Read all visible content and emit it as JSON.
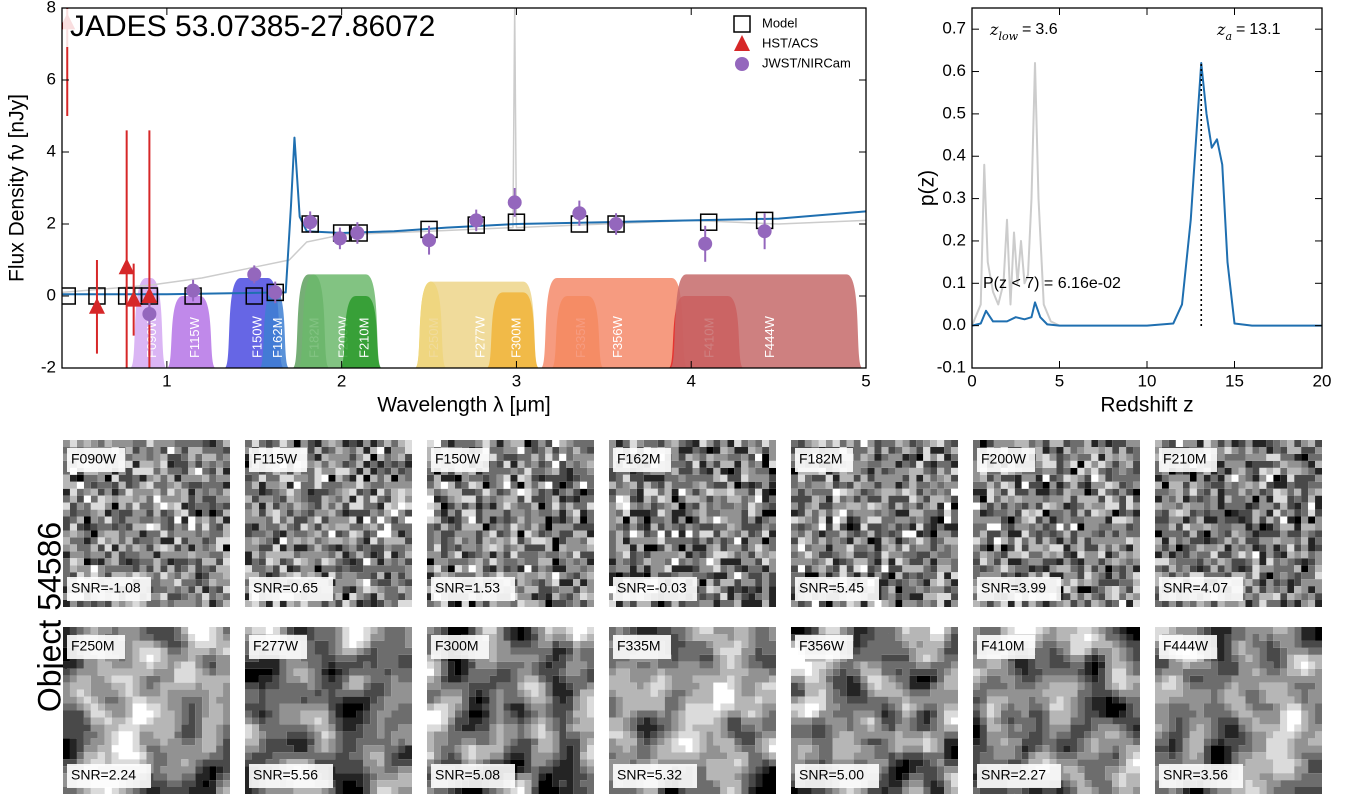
{
  "chart_data": [
    {
      "type": "scatter",
      "title": "JADES 53.07385-27.86072",
      "xlabel": "Wavelength λ [μm]",
      "ylabel": "Flux Density fν [nJy]",
      "xlim": [
        0.4,
        5
      ],
      "xticks": [
        1,
        2,
        3,
        4,
        5
      ],
      "ylim": [
        -2,
        8
      ],
      "yticks": [
        -2,
        0,
        2,
        4,
        6,
        8
      ],
      "filters": [
        {
          "name": "F090W",
          "color": "#d3a8f2",
          "range": [
            0.79,
            1.0
          ],
          "top": 0.5
        },
        {
          "name": "F115W",
          "color": "#b574e6",
          "range": [
            1.0,
            1.28
          ],
          "top": 0.0
        },
        {
          "name": "F150W",
          "color": "#4b4be0",
          "range": [
            1.33,
            1.67
          ],
          "top": 0.5
        },
        {
          "name": "F162M",
          "color": "#3d7fd2",
          "range": [
            1.53,
            1.7
          ],
          "top": 0.2
        },
        {
          "name": "F182M",
          "color": "#5ea05e",
          "range": [
            1.72,
            1.93
          ],
          "top": 0.6
        },
        {
          "name": "F200W",
          "color": "#6cb86c",
          "range": [
            1.75,
            2.23
          ],
          "top": 0.6
        },
        {
          "name": "F210M",
          "color": "#2c9a2c",
          "range": [
            1.99,
            2.23
          ],
          "top": 0.0
        },
        {
          "name": "F250M",
          "color": "#f2d22e",
          "range": [
            2.42,
            2.6
          ],
          "top": 0.4
        },
        {
          "name": "F277W",
          "color": "#edd58a",
          "range": [
            2.42,
            3.13
          ],
          "top": 0.4
        },
        {
          "name": "F300M",
          "color": "#f1b43a",
          "range": [
            2.83,
            3.13
          ],
          "top": 0.1
        },
        {
          "name": "F335M",
          "color": "#f5862a",
          "range": [
            3.2,
            3.5
          ],
          "top": 0.0
        },
        {
          "name": "F356W",
          "color": "#f48a6a",
          "range": [
            3.14,
            3.98
          ],
          "top": 0.5
        },
        {
          "name": "F410M",
          "color": "#e32222",
          "range": [
            3.87,
            4.3
          ],
          "top": 0.0
        },
        {
          "name": "F444W",
          "color": "#c66a6a",
          "range": [
            3.88,
            4.98
          ],
          "top": 0.6
        }
      ],
      "series": [
        {
          "kind": "line",
          "color": "#cccccc",
          "x": [
            0.4,
            0.9,
            1.2,
            1.5,
            1.7,
            1.8,
            2.0,
            2.5,
            2.98,
            2.99,
            3.0,
            3.5,
            4.0,
            4.5,
            5.0
          ],
          "values": [
            0.1,
            0.3,
            0.5,
            0.8,
            1.0,
            1.5,
            1.7,
            1.8,
            1.9,
            8,
            1.9,
            2.0,
            2.1,
            2.0,
            2.1
          ]
        },
        {
          "kind": "line",
          "color": "#1f6fb0",
          "x": [
            0.4,
            1.0,
            1.68,
            1.71,
            1.73,
            1.76,
            1.8,
            2.0,
            2.3,
            2.6,
            3.0,
            3.5,
            4.0,
            4.5,
            5.0
          ],
          "values": [
            0.05,
            0.05,
            0.1,
            2.5,
            4.4,
            2.2,
            1.8,
            1.75,
            1.8,
            1.9,
            2.0,
            2.05,
            2.1,
            2.15,
            2.35
          ]
        },
        {
          "name": "Model",
          "kind": "square",
          "color": "#000000",
          "x": [
            0.43,
            0.6,
            0.77,
            0.81,
            0.9,
            1.15,
            1.5,
            1.62,
            1.82,
            2.0,
            2.1,
            2.5,
            2.77,
            3.0,
            3.36,
            3.57,
            4.1,
            4.42
          ],
          "values": [
            0,
            0,
            0,
            0,
            0,
            0,
            0,
            0.1,
            2.0,
            1.75,
            1.75,
            1.85,
            1.97,
            2.05,
            2.0,
            2.0,
            2.05,
            2.1
          ]
        },
        {
          "name": "HST/ACS",
          "kind": "triangle",
          "color": "#d62728",
          "x": [
            0.43,
            0.6,
            0.77,
            0.81,
            0.9
          ],
          "values": [
            7.6,
            -0.3,
            0.8,
            -0.1,
            0.0
          ],
          "errors": [
            2.6,
            1.3,
            3.8,
            1.0,
            4.6
          ]
        },
        {
          "name": "JWST/NIRCam",
          "kind": "circle",
          "color": "#9467bd",
          "x": [
            0.9,
            1.15,
            1.5,
            1.62,
            1.82,
            1.99,
            2.09,
            2.5,
            2.77,
            2.99,
            3.36,
            3.57,
            4.08,
            4.42
          ],
          "values": [
            -0.5,
            0.15,
            0.6,
            0.1,
            2.05,
            1.6,
            1.75,
            1.55,
            2.1,
            2.6,
            2.3,
            2.0,
            1.45,
            1.8
          ],
          "errors": [
            0.3,
            0.3,
            0.25,
            0.3,
            0.3,
            0.3,
            0.3,
            0.4,
            0.3,
            0.4,
            0.35,
            0.3,
            0.5,
            0.5
          ]
        }
      ]
    },
    {
      "type": "line",
      "xlabel": "Redshift z",
      "ylabel": "p(z)",
      "xlim": [
        0,
        20
      ],
      "xticks": [
        0,
        5,
        10,
        15,
        20
      ],
      "ylim": [
        -0.1,
        0.75
      ],
      "yticks": [
        -0.1,
        {
          "value": 0,
          "label": "0.0"
        },
        0.1,
        0.2,
        0.3,
        0.4,
        0.5,
        0.6,
        0.7
      ],
      "annotations": [
        {
          "symbol": "z",
          "subscript": "low",
          "relation": "=",
          "value": 3.6
        },
        {
          "symbol": "z",
          "subscript": "a",
          "relation": "=",
          "value": 13.1
        }
      ],
      "probability_label": "P(z < 7) = 6.16e-02",
      "series": [
        {
          "color": "#cccccc",
          "x": [
            0,
            0.5,
            0.7,
            0.9,
            1.2,
            1.5,
            1.8,
            2.0,
            2.2,
            2.4,
            2.6,
            2.8,
            3.0,
            3.2,
            3.4,
            3.6,
            3.8,
            4.1,
            4.5,
            5
          ],
          "values": [
            0,
            0.05,
            0.38,
            0.15,
            0.08,
            0.05,
            0.1,
            0.25,
            0.05,
            0.22,
            0.1,
            0.2,
            0.1,
            0.12,
            0.3,
            0.62,
            0.3,
            0.05,
            0.01,
            0
          ]
        },
        {
          "color": "#1f6fb0",
          "x": [
            0,
            0.5,
            0.8,
            1.2,
            2,
            2.5,
            3,
            3.4,
            3.6,
            3.9,
            4.3,
            5,
            10,
            11.5,
            12,
            12.5,
            12.9,
            13.1,
            13.4,
            13.7,
            14.0,
            14.3,
            14.6,
            15,
            16,
            20
          ],
          "values": [
            0,
            0.005,
            0.035,
            0.01,
            0.01,
            0.02,
            0.015,
            0.02,
            0.055,
            0.02,
            0.003,
            0,
            0,
            0.005,
            0.05,
            0.25,
            0.5,
            0.62,
            0.5,
            0.42,
            0.44,
            0.38,
            0.15,
            0.005,
            0,
            0
          ]
        }
      ]
    }
  ],
  "cutouts": {
    "label": "Object 54586",
    "panels": [
      {
        "filter": "F090W",
        "snr": "SNR=-1.08"
      },
      {
        "filter": "F115W",
        "snr": "SNR=0.65"
      },
      {
        "filter": "F150W",
        "snr": "SNR=1.53"
      },
      {
        "filter": "F162M",
        "snr": "SNR=-0.03"
      },
      {
        "filter": "F182M",
        "snr": "SNR=5.45"
      },
      {
        "filter": "F200W",
        "snr": "SNR=3.99"
      },
      {
        "filter": "F210M",
        "snr": "SNR=4.07"
      },
      {
        "filter": "F250M",
        "snr": "SNR=2.24"
      },
      {
        "filter": "F277W",
        "snr": "SNR=5.56"
      },
      {
        "filter": "F300M",
        "snr": "SNR=5.08"
      },
      {
        "filter": "F335M",
        "snr": "SNR=5.32"
      },
      {
        "filter": "F356W",
        "snr": "SNR=5.00"
      },
      {
        "filter": "F410M",
        "snr": "SNR=2.27"
      },
      {
        "filter": "F444W",
        "snr": "SNR=3.56"
      }
    ]
  }
}
